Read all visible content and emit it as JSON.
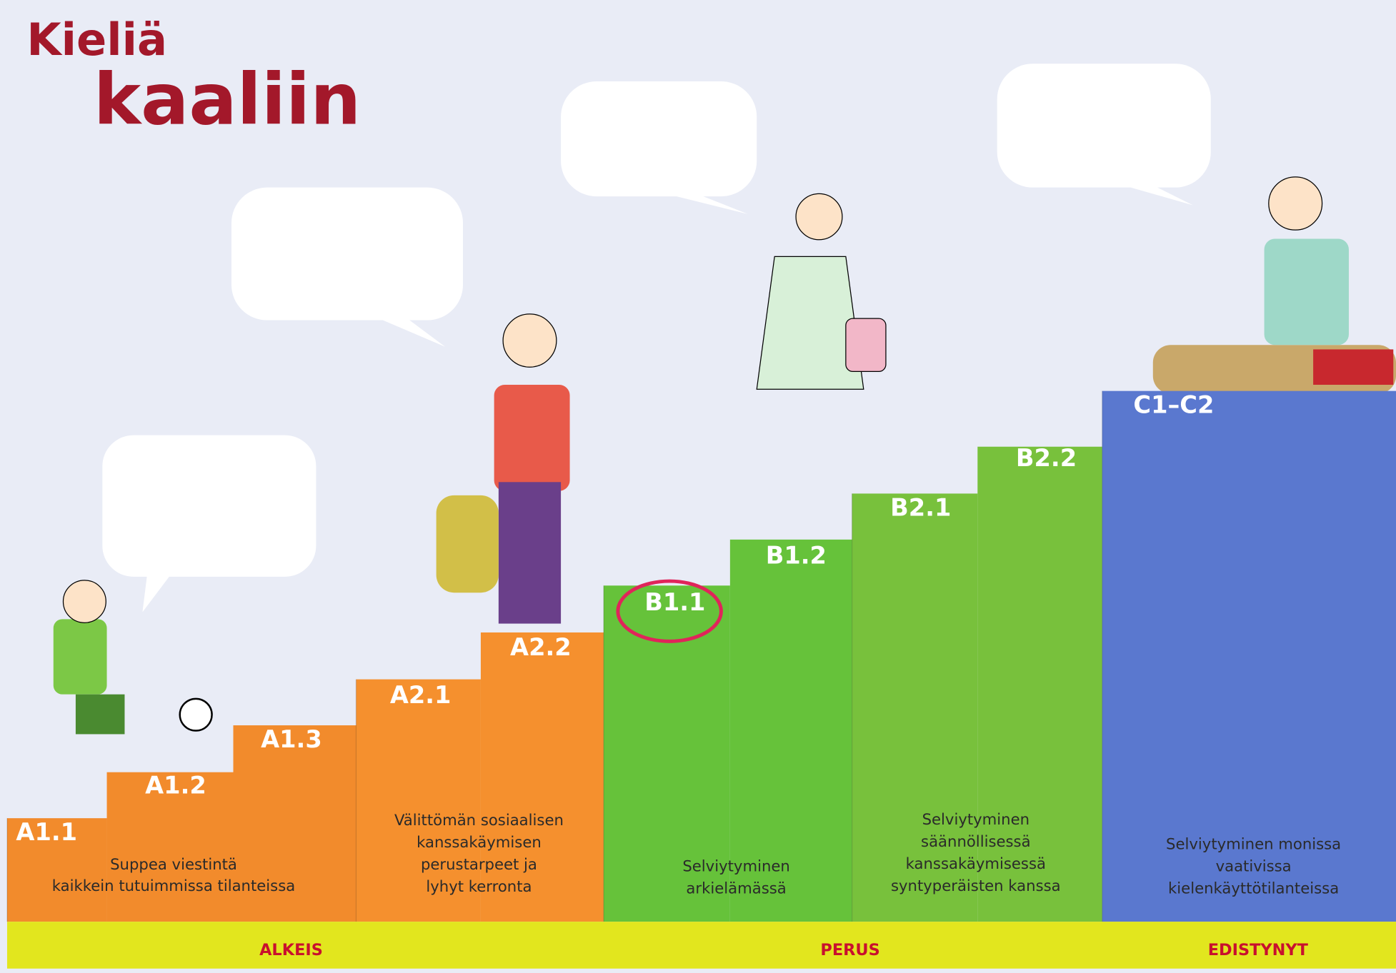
{
  "title": {
    "line1": "Kieliä",
    "line2": "kaaliin"
  },
  "stages": [
    {
      "levels": [
        "A1.1",
        "A1.2",
        "A1.3"
      ],
      "description": [
        "Suppea viestintä",
        "kaikkein tutuimmissa tilanteissa"
      ]
    },
    {
      "levels": [
        "A2.1",
        "A2.2"
      ],
      "description": [
        "Välittömän sosiaalisen",
        "kanssakäymisen",
        "perustarpeet ja",
        "lyhyt kerronta"
      ]
    },
    {
      "levels": [
        "B1.1",
        "B1.2"
      ],
      "description": [
        "Selviytyminen",
        "arkielämässä"
      ]
    },
    {
      "levels": [
        "B2.1",
        "B2.2"
      ],
      "description": [
        "Selviytyminen",
        "säännöllisessä",
        "kanssakäymisessä",
        "syntyperäisten kanssa"
      ]
    },
    {
      "levels": [
        "C1–C2"
      ],
      "description": [
        "Selviytyminen monissa",
        "vaativissa",
        "kielenkäyttötilanteissa"
      ]
    }
  ],
  "bands": [
    "ALKEIS",
    "PERUS",
    "EDISTYNYT"
  ]
}
